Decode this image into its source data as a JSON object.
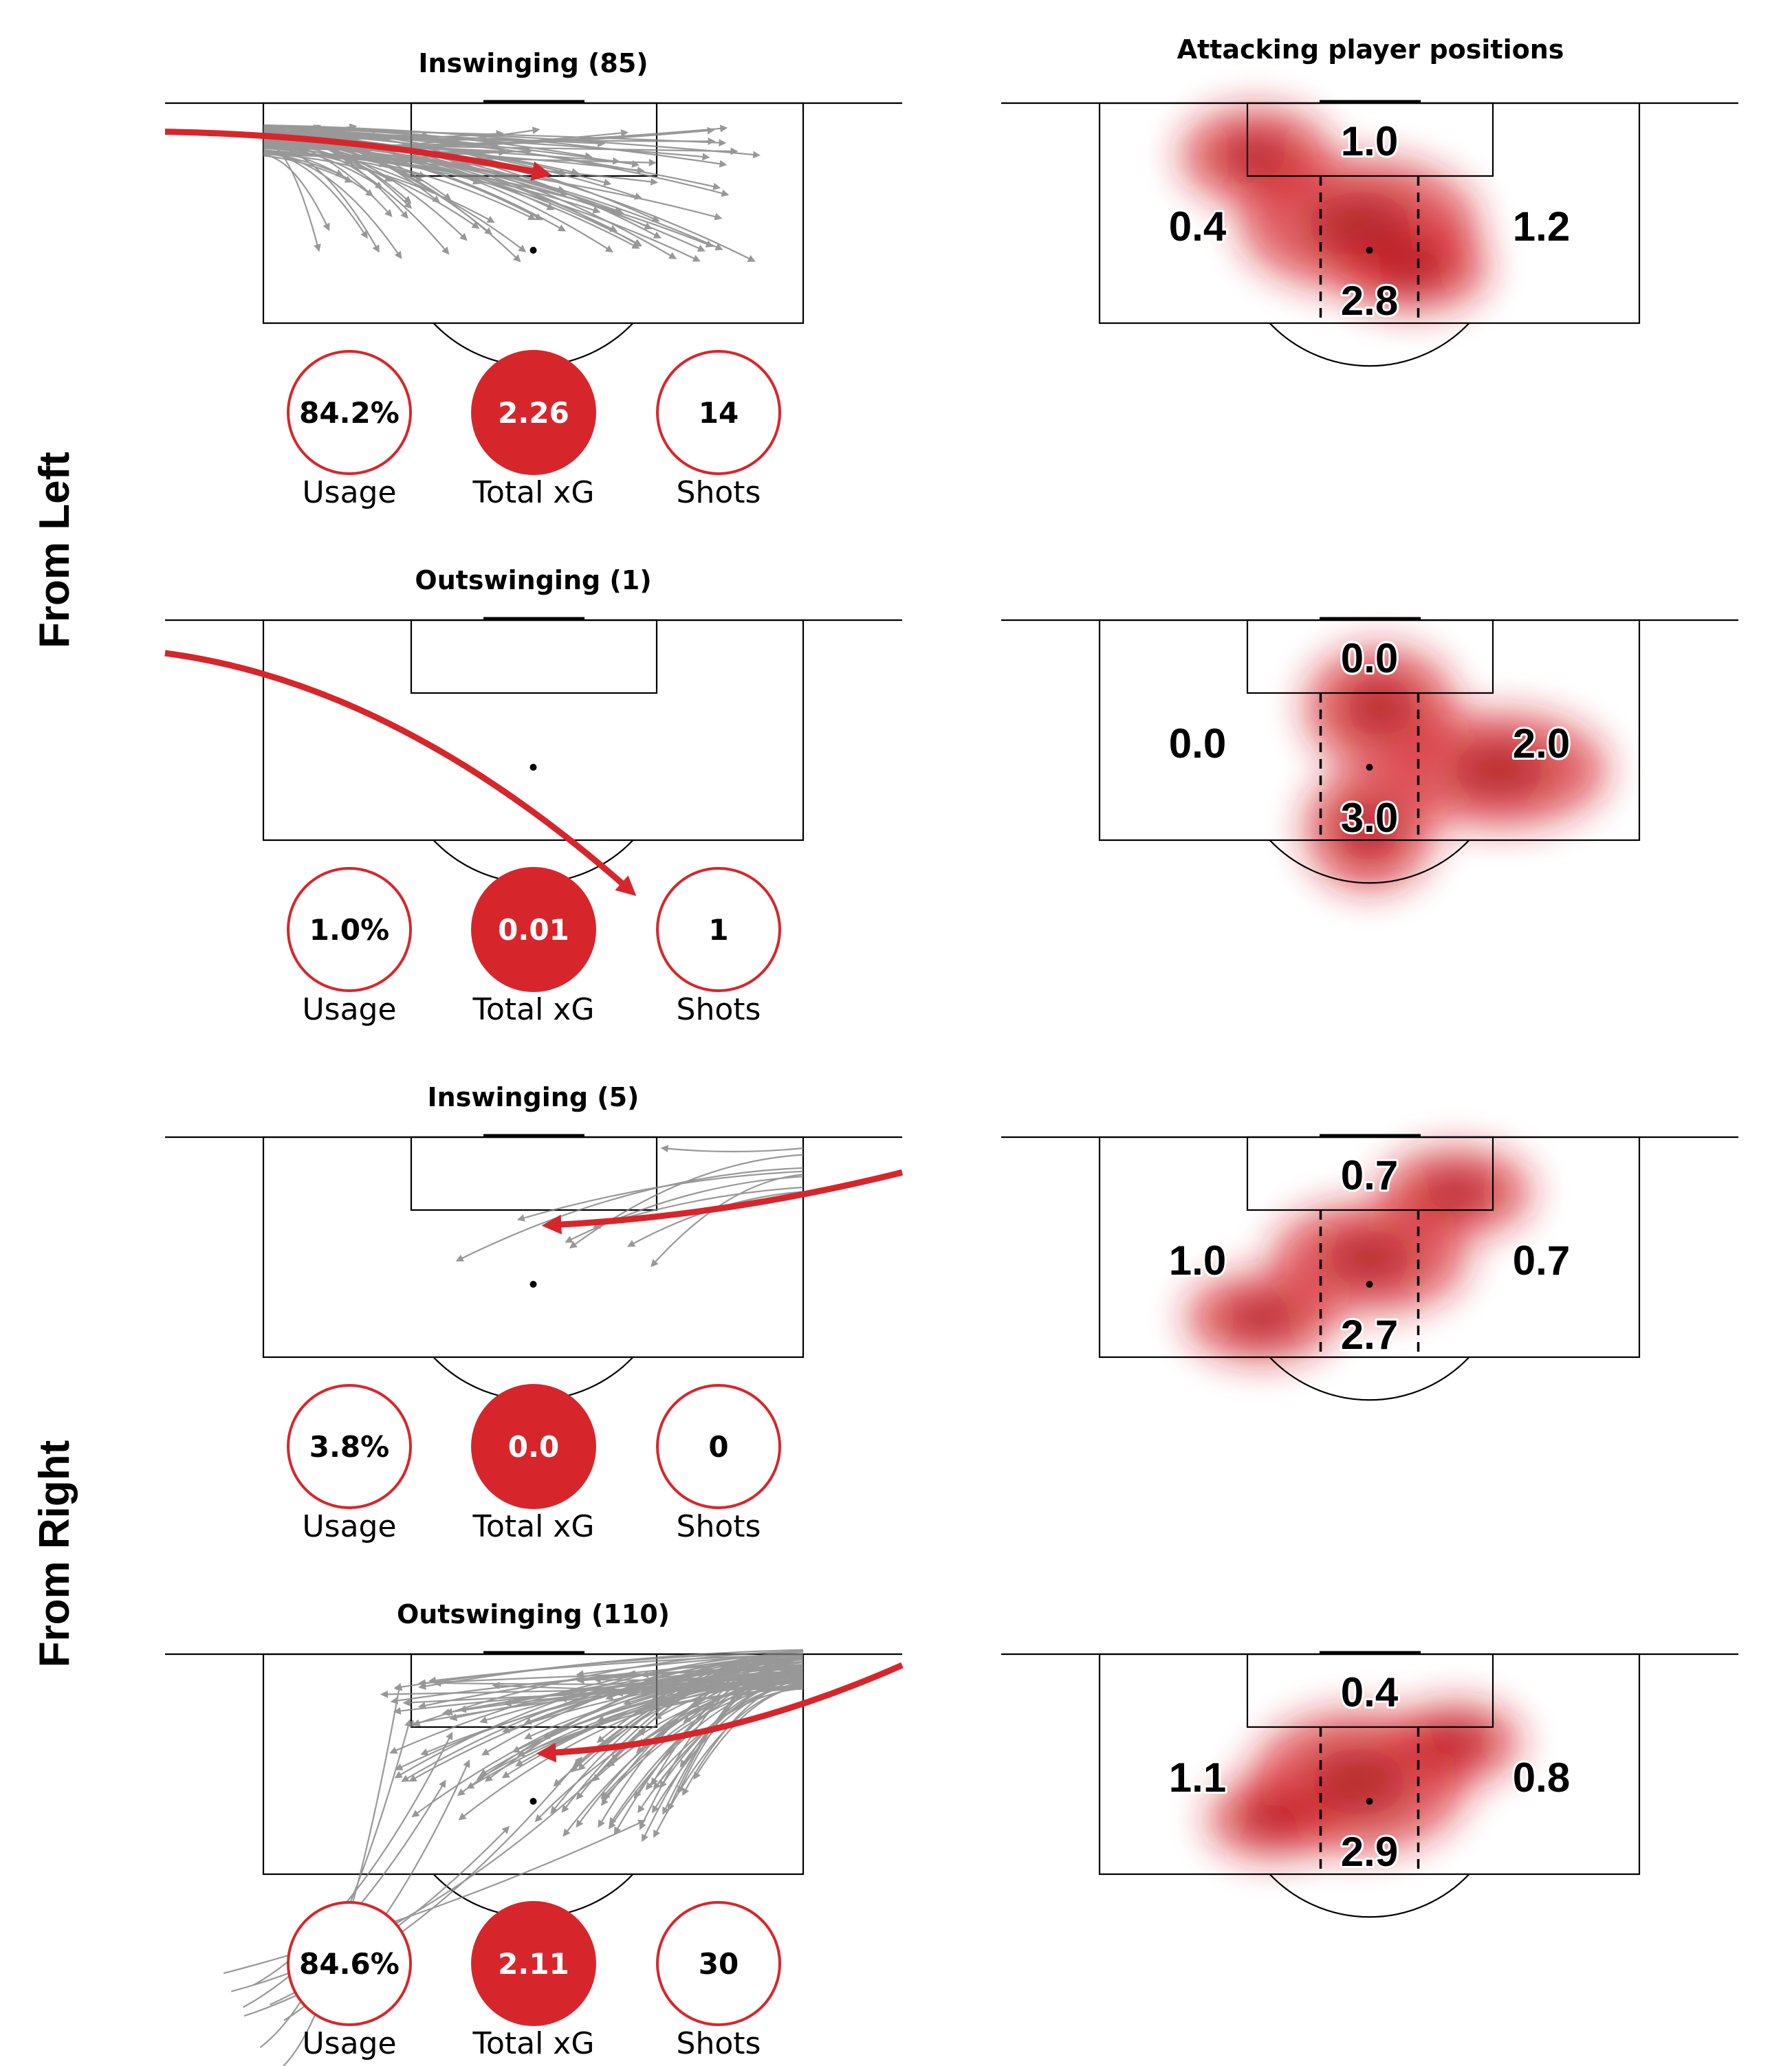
{
  "colors": {
    "accent": "#d7262b",
    "trajectory": "#7f7f7f",
    "line": "#000000"
  },
  "side_labels": [
    "From Left",
    "From Right"
  ],
  "heatmap_title": "Attacking player positions",
  "stat_labels": {
    "usage": "Usage",
    "xg": "Total xG",
    "shots": "Shots"
  },
  "chart_data": [
    {
      "type": "pitch-trajectory-heatmap",
      "side": "From Left",
      "title": "Inswinging (85)",
      "delivery": "inswinging",
      "usage": "84.2%",
      "total_xg": "2.26",
      "shots": "14",
      "zones": {
        "six_yard": "1.0",
        "left": "0.4",
        "center": "2.8",
        "right": "1.2"
      },
      "avg_path": {
        "start": [
          0.0,
          0.13
        ],
        "end": [
          0.52,
          0.32
        ],
        "bend": 0.02
      },
      "heat_blobs": [
        [
          0.29,
          0.24,
          0.14,
          0.22
        ],
        [
          0.48,
          0.55,
          0.22,
          0.3
        ],
        [
          0.58,
          0.75,
          0.14,
          0.2
        ]
      ]
    },
    {
      "type": "pitch-trajectory-heatmap",
      "side": "From Left",
      "title": "Outswinging (1)",
      "delivery": "outswinging",
      "usage": "1.0%",
      "total_xg": "0.01",
      "shots": "1",
      "zones": {
        "six_yard": "0.0",
        "left": "0.0",
        "center": "3.0",
        "right": "2.0"
      },
      "avg_path": {
        "start": [
          0.0,
          0.15
        ],
        "end": [
          0.68,
          1.23
        ],
        "bend": 0.1
      },
      "heat_blobs": [
        [
          0.52,
          0.4,
          0.14,
          0.28
        ],
        [
          0.74,
          0.68,
          0.2,
          0.26
        ],
        [
          0.5,
          0.95,
          0.12,
          0.28
        ]
      ]
    },
    {
      "type": "pitch-trajectory-heatmap",
      "side": "From Right",
      "title": "Inswinging (5)",
      "delivery": "inswinging",
      "usage": "3.8%",
      "total_xg": "0.0",
      "shots": "0",
      "zones": {
        "six_yard": "0.7",
        "left": "1.0",
        "center": "2.7",
        "right": "0.7"
      },
      "avg_path": {
        "start": [
          1.0,
          0.16
        ],
        "end": [
          0.53,
          0.4
        ],
        "bend": -0.02
      },
      "heat_blobs": [
        [
          0.66,
          0.25,
          0.14,
          0.2
        ],
        [
          0.5,
          0.55,
          0.18,
          0.25
        ],
        [
          0.3,
          0.82,
          0.14,
          0.2
        ]
      ]
    },
    {
      "type": "pitch-trajectory-heatmap",
      "side": "From Right",
      "title": "Outswinging (110)",
      "delivery": "outswinging",
      "usage": "84.6%",
      "total_xg": "2.11",
      "shots": "30",
      "zones": {
        "six_yard": "0.4",
        "left": "1.1",
        "center": "2.9",
        "right": "0.8"
      },
      "avg_path": {
        "start": [
          1.0,
          0.05
        ],
        "end": [
          0.52,
          0.45
        ],
        "bend": -0.04
      },
      "heat_blobs": [
        [
          0.48,
          0.58,
          0.2,
          0.32
        ],
        [
          0.66,
          0.4,
          0.12,
          0.18
        ],
        [
          0.32,
          0.75,
          0.12,
          0.18
        ]
      ]
    }
  ]
}
